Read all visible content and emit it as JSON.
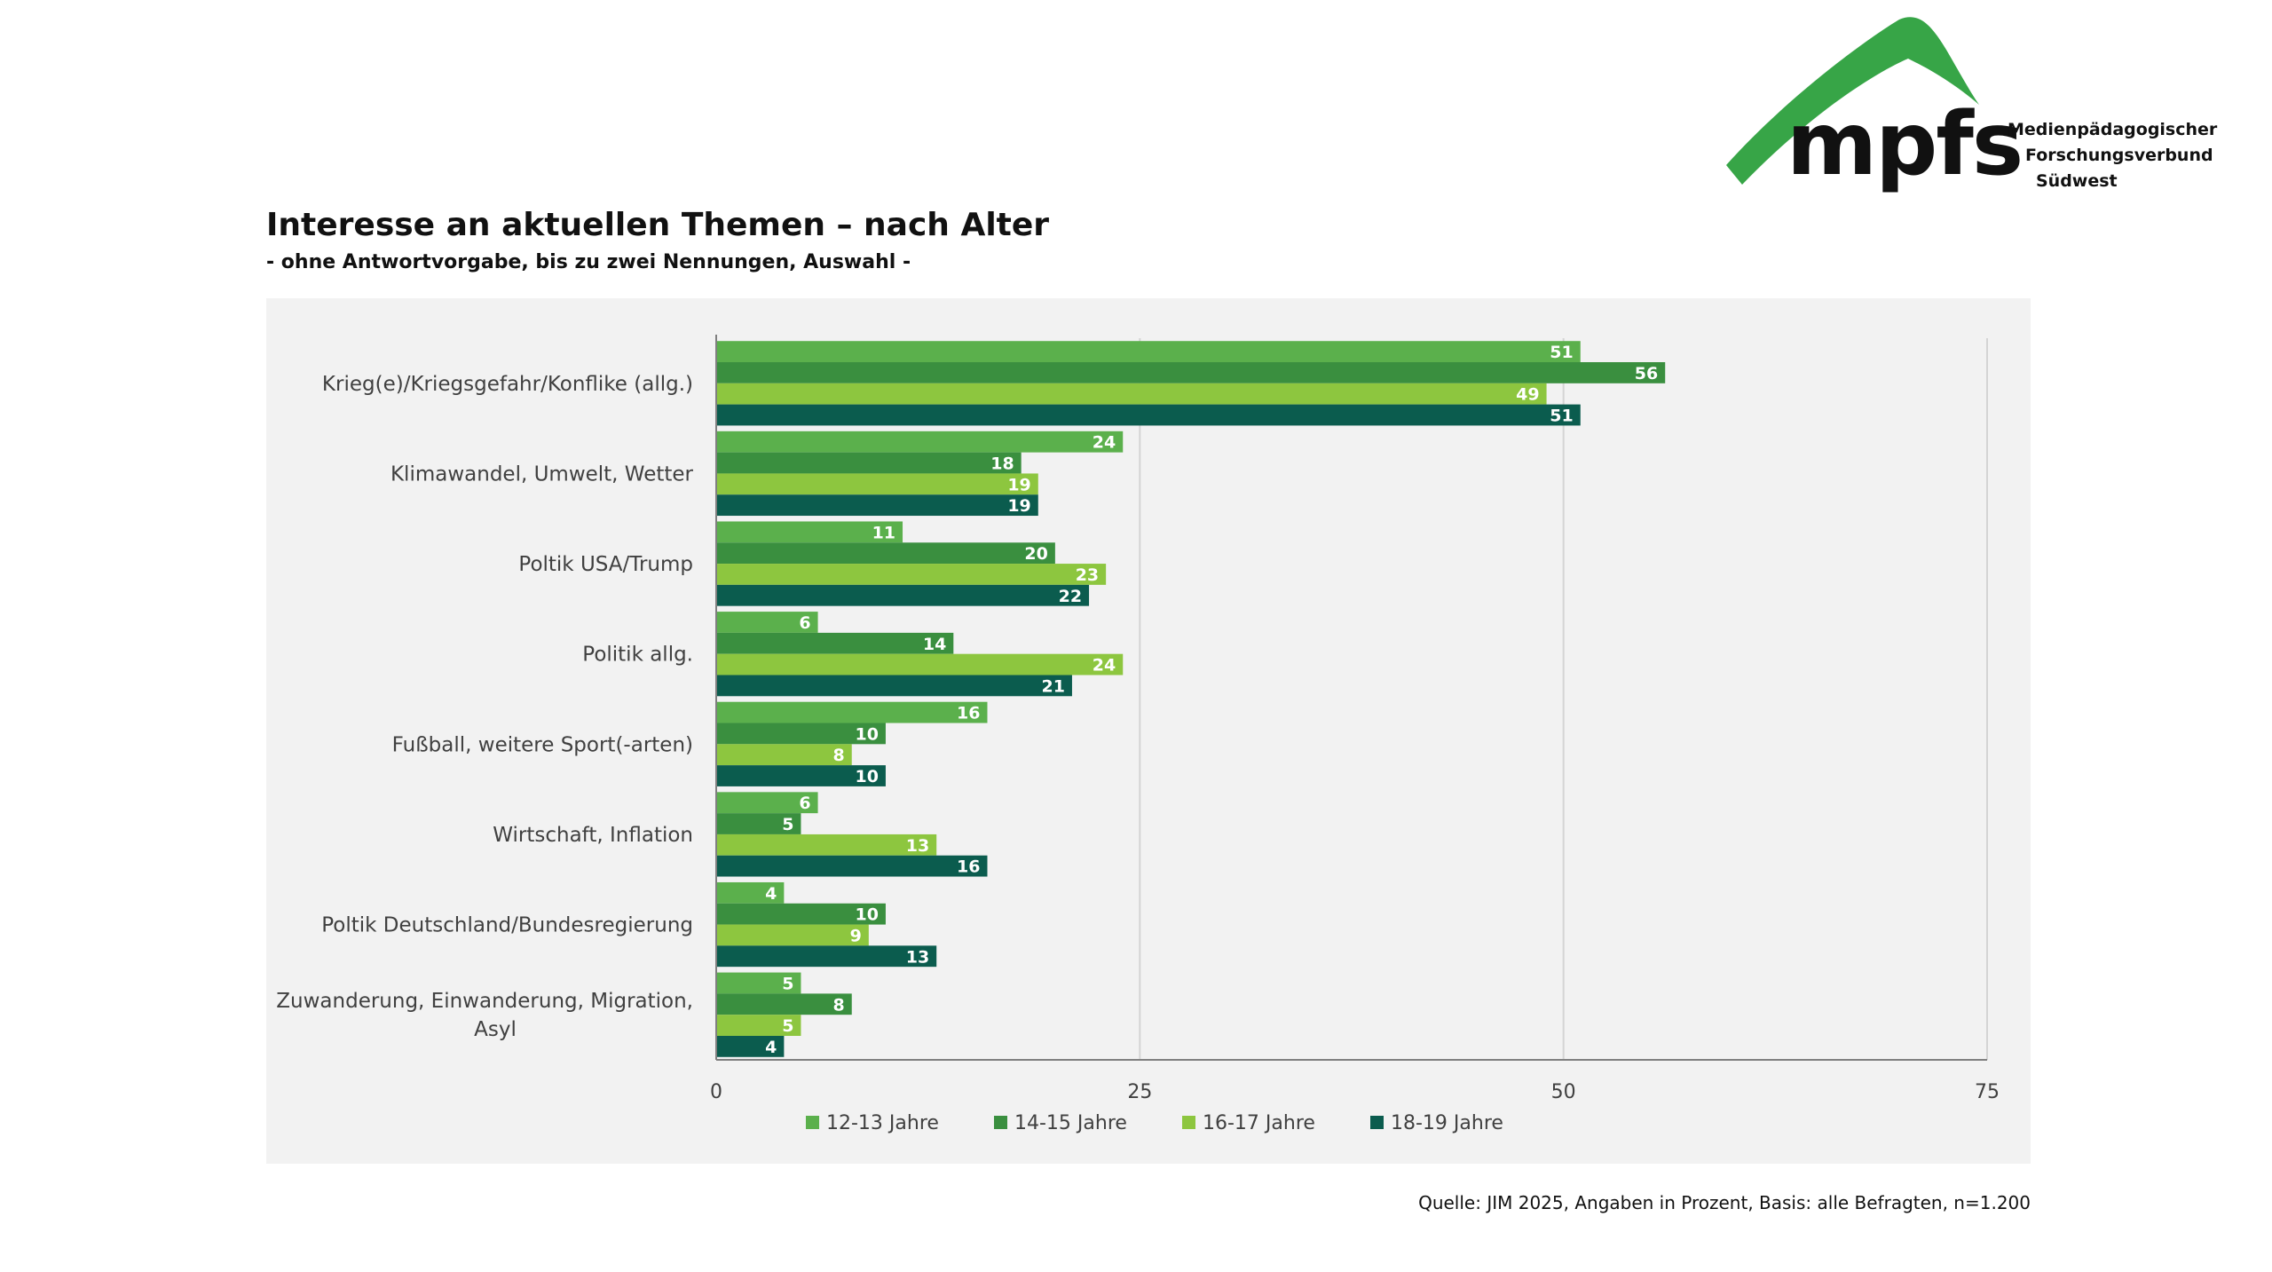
{
  "header": {
    "logo_text": "mpfs",
    "org_lines": [
      "Medienpädagogischer",
      "Forschungsverbund",
      "Südwest"
    ],
    "title": "Interesse an aktuellen Themen – nach Alter",
    "subtitle": "- ohne Antwortvorgabe, bis zu zwei Nennungen, Auswahl -"
  },
  "footer": {
    "source": "Quelle: JIM 2025, Angaben in Prozent, Basis: alle Befragten, n=1.200"
  },
  "colors": {
    "brand_green": "#37a547",
    "panel_bg": "#f2f2f2"
  },
  "chart_data": {
    "type": "bar",
    "orientation": "horizontal",
    "title": "Interesse an aktuellen Themen – nach Alter",
    "subtitle": "- ohne Antwortvorgabe, bis zu zwei Nennungen, Auswahl -",
    "xlabel": "",
    "ylabel": "",
    "xlim": [
      0,
      75
    ],
    "xticks": [
      0,
      25,
      50,
      75
    ],
    "grid": true,
    "legend_position": "bottom",
    "categories": [
      [
        "Krieg(e)/Kriegsgefahr/Konflike (allg.)"
      ],
      [
        "Klimawandel, Umwelt, Wetter"
      ],
      [
        "Poltik USA/Trump"
      ],
      [
        "Politik allg."
      ],
      [
        "Fußball, weitere Sport(-arten)"
      ],
      [
        "Wirtschaft, Inflation"
      ],
      [
        "Poltik Deutschland/Bundesregierung"
      ],
      [
        "Zuwanderung, Einwanderung, Migration,",
        "Asyl"
      ]
    ],
    "series": [
      {
        "name": "12-13 Jahre",
        "color": "#5bb04c",
        "values": [
          51,
          24,
          11,
          6,
          16,
          6,
          4,
          5
        ]
      },
      {
        "name": "14-15 Jahre",
        "color": "#3a8f3f",
        "values": [
          56,
          18,
          20,
          14,
          10,
          5,
          10,
          8
        ]
      },
      {
        "name": "16-17 Jahre",
        "color": "#8dc63f",
        "values": [
          49,
          19,
          23,
          24,
          8,
          13,
          9,
          5
        ]
      },
      {
        "name": "18-19 Jahre",
        "color": "#0b5c4e",
        "values": [
          51,
          19,
          22,
          21,
          10,
          16,
          13,
          4
        ]
      }
    ]
  }
}
